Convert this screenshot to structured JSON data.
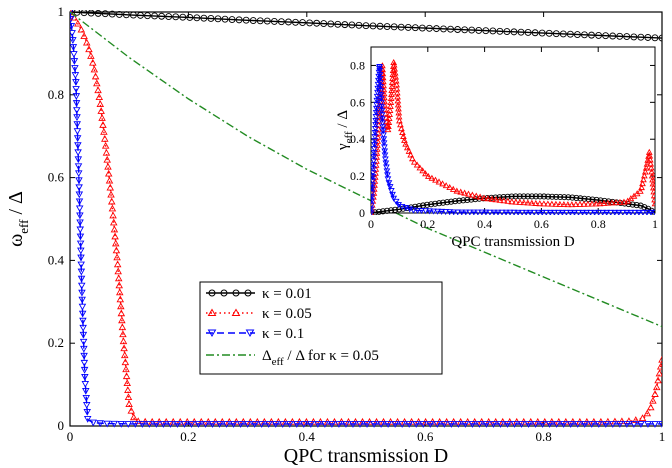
{
  "chart_data": [
    {
      "type": "line",
      "title": "",
      "xlabel": "QPC transmission D",
      "ylabel_main": "ω",
      "ylabel_sub": "eff",
      "ylabel_rest": " / Δ",
      "xlim": [
        0,
        1
      ],
      "ylim": [
        0,
        1
      ],
      "xticks": [
        "0",
        "0.2",
        "0.4",
        "0.6",
        "0.8",
        "1"
      ],
      "yticks": [
        "0",
        "0.2",
        "0.4",
        "0.6",
        "0.8",
        "1"
      ],
      "legend_position": "lower-center",
      "series": [
        {
          "name": "κ = 0.01",
          "color": "#000000",
          "marker": "circle",
          "dash": "solid",
          "x": [
            0,
            0.1,
            0.2,
            0.3,
            0.4,
            0.5,
            0.6,
            0.7,
            0.8,
            0.9,
            1.0
          ],
          "y": [
            1.0,
            0.993,
            0.987,
            0.98,
            0.974,
            0.967,
            0.961,
            0.955,
            0.949,
            0.943,
            0.937
          ]
        },
        {
          "name": "κ = 0.05",
          "color": "#ff0000",
          "marker": "triangle-up",
          "dash": "dotted",
          "x": [
            0,
            0.01,
            0.02,
            0.03,
            0.04,
            0.05,
            0.06,
            0.07,
            0.08,
            0.09,
            0.1,
            0.11,
            0.13,
            0.2,
            0.4,
            0.6,
            0.8,
            0.9,
            0.95,
            0.97,
            0.98,
            0.99,
            1.0
          ],
          "y": [
            1.0,
            0.98,
            0.955,
            0.92,
            0.87,
            0.79,
            0.68,
            0.55,
            0.4,
            0.21,
            0.05,
            0.012,
            0.01,
            0.01,
            0.01,
            0.01,
            0.01,
            0.01,
            0.012,
            0.02,
            0.04,
            0.085,
            0.16
          ]
        },
        {
          "name": "κ = 0.1",
          "color": "#0000ff",
          "marker": "triangle-down",
          "dash": "dashed",
          "x": [
            0,
            0.005,
            0.01,
            0.015,
            0.02,
            0.025,
            0.03,
            0.04,
            0.06,
            0.1,
            0.3,
            0.5,
            0.7,
            0.9,
            1.0
          ],
          "y": [
            1.0,
            0.93,
            0.83,
            0.6,
            0.33,
            0.12,
            0.015,
            0.008,
            0.006,
            0.005,
            0.005,
            0.005,
            0.005,
            0.005,
            0.005
          ]
        },
        {
          "name_main": "Δ",
          "name_sub": "eff",
          "name_rest": " / Δ for κ = 0.05",
          "color": "#228b22",
          "marker": "none",
          "dash": "dashdot",
          "x": [
            0,
            0.1,
            0.2,
            0.3,
            0.4,
            0.5,
            0.6,
            0.7,
            0.8,
            0.9,
            1.0
          ],
          "y": [
            1.0,
            0.89,
            0.79,
            0.7,
            0.62,
            0.55,
            0.48,
            0.42,
            0.36,
            0.3,
            0.24
          ]
        }
      ]
    },
    {
      "type": "line",
      "title": "",
      "xlabel": "QPC transmission D",
      "ylabel_main": "γ",
      "ylabel_sub": "eff",
      "ylabel_rest": " / Δ",
      "xlim": [
        0,
        1
      ],
      "ylim": [
        0,
        0.9
      ],
      "xticks": [
        "0",
        "0.2",
        "0.4",
        "0.6",
        "0.8",
        "1"
      ],
      "yticks": [
        "0",
        "0.2",
        "0.4",
        "0.6",
        "0.8"
      ],
      "series": [
        {
          "name": "κ = 0.01",
          "color": "#000000",
          "marker": "circle",
          "dash": "solid",
          "x": [
            0,
            0.02,
            0.1,
            0.2,
            0.3,
            0.4,
            0.5,
            0.6,
            0.7,
            0.8,
            0.9,
            0.95,
            0.98,
            1.0
          ],
          "y": [
            0,
            0.005,
            0.02,
            0.045,
            0.065,
            0.08,
            0.09,
            0.09,
            0.085,
            0.07,
            0.05,
            0.04,
            0.02,
            0
          ]
        },
        {
          "name": "κ = 0.05",
          "color": "#ff0000",
          "marker": "triangle-up",
          "dash": "dotted",
          "x": [
            0,
            0.01,
            0.02,
            0.03,
            0.04,
            0.05,
            0.06,
            0.07,
            0.08,
            0.09,
            0.1,
            0.12,
            0.15,
            0.2,
            0.3,
            0.4,
            0.5,
            0.6,
            0.7,
            0.8,
            0.9,
            0.95,
            0.97,
            0.98,
            0.99,
            1.0
          ],
          "y": [
            0,
            0.1,
            0.3,
            0.55,
            0.8,
            0.55,
            0.45,
            0.6,
            0.82,
            0.7,
            0.5,
            0.38,
            0.28,
            0.2,
            0.12,
            0.08,
            0.06,
            0.05,
            0.045,
            0.05,
            0.06,
            0.12,
            0.25,
            0.33,
            0.2,
            0.05
          ]
        },
        {
          "name": "κ = 0.1",
          "color": "#0000ff",
          "marker": "triangle-down",
          "dash": "dashed",
          "x": [
            0,
            0.01,
            0.02,
            0.03,
            0.04,
            0.05,
            0.06,
            0.08,
            0.1,
            0.15,
            0.3,
            0.6,
            0.9,
            1.0
          ],
          "y": [
            0,
            0.3,
            0.6,
            0.8,
            0.5,
            0.3,
            0.18,
            0.08,
            0.04,
            0.015,
            0.005,
            0.003,
            0.003,
            0.003
          ]
        }
      ]
    }
  ]
}
